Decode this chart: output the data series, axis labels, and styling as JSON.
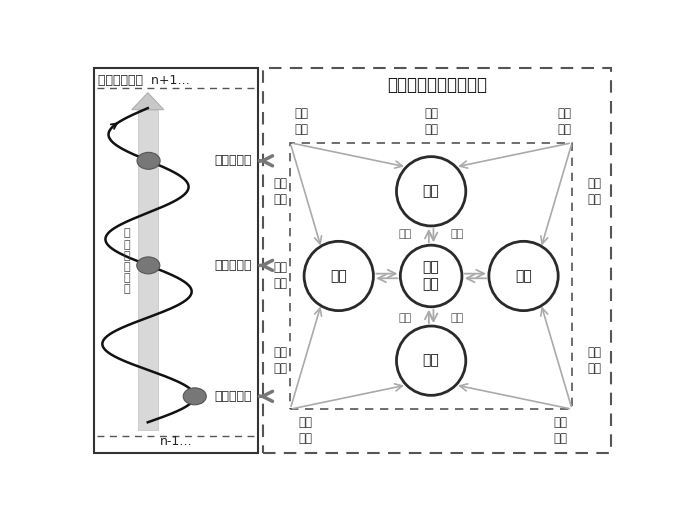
{
  "title_left": "深度学习过程  n+1…",
  "title_right": "多要素动态自适应转化",
  "left_bottom_label": "n-1…",
  "left_spiral_labels": [
    "迁移式学习",
    "参与式学习",
    "接受式学习"
  ],
  "left_center_text": "深\n度\n学\n习\n能\n力",
  "right_circles": [
    "认知",
    "知识",
    "深度\n学习",
    "学习",
    "教学"
  ],
  "top_labels": [
    "知识\n迁移",
    "认知\n迁移",
    "认知\n发展"
  ],
  "left_labels": [
    "知识\n应用",
    "知识\n理解",
    "知识\n话语"
  ],
  "right_labels": [
    "深度\n参与",
    "学生\n话语"
  ],
  "bottom_labels": [
    "教师\n话语",
    "教师\n话语"
  ],
  "mutual_labels": [
    "互动",
    "互动",
    "互动",
    "互动"
  ],
  "bg_color": "#ffffff",
  "border_color": "#333333",
  "dashed_color": "#555555",
  "circle_edge_color": "#2a2a2a",
  "arrow_color": "#aaaaaa",
  "spiral_color": "#111111",
  "blob_color": "#777777",
  "shaft_color": "#cccccc",
  "text_color": "#222222"
}
